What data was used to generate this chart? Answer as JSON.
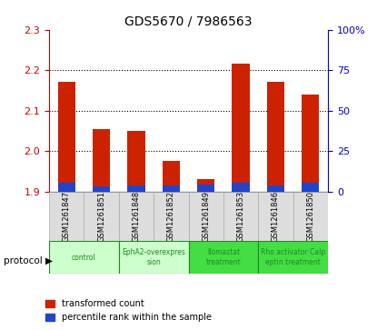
{
  "title": "GDS5670 / 7986563",
  "samples": [
    "GSM1261847",
    "GSM1261851",
    "GSM1261848",
    "GSM1261852",
    "GSM1261849",
    "GSM1261853",
    "GSM1261846",
    "GSM1261850"
  ],
  "red_values": [
    2.17,
    2.055,
    2.05,
    1.975,
    1.93,
    2.215,
    2.17,
    2.14
  ],
  "blue_values": [
    5.5,
    3.0,
    3.5,
    3.5,
    4.0,
    5.5,
    3.5,
    5.5
  ],
  "ylim_left": [
    1.9,
    2.3
  ],
  "ylim_right": [
    0,
    100
  ],
  "yticks_left": [
    1.9,
    2.0,
    2.1,
    2.2,
    2.3
  ],
  "yticks_right": [
    0,
    25,
    50,
    75,
    100
  ],
  "ytick_labels_right": [
    "0",
    "25",
    "50",
    "75",
    "100%"
  ],
  "protocols": [
    {
      "label": "control",
      "span": [
        0,
        2
      ],
      "color": "#ccffcc",
      "text_color": "#228822"
    },
    {
      "label": "EphA2-overexpres\nsion",
      "span": [
        2,
        4
      ],
      "color": "#ccffcc",
      "text_color": "#228822"
    },
    {
      "label": "llomastat\ntreatment",
      "span": [
        4,
        6
      ],
      "color": "#44dd44",
      "text_color": "#228822"
    },
    {
      "label": "Rho activator Calp\neptin treatment",
      "span": [
        6,
        8
      ],
      "color": "#44dd44",
      "text_color": "#228822"
    }
  ],
  "bar_width": 0.5,
  "red_color": "#cc2200",
  "blue_color": "#2244cc",
  "baseline": 1.9,
  "blue_scale": 0.004,
  "protocol_label": "protocol",
  "legend_red": "transformed count",
  "legend_blue": "percentile rank within the sample",
  "grid_color": "black",
  "tick_color_left": "#cc0000",
  "tick_color_right": "#0000cc",
  "sample_bg_color": "#dddddd",
  "sample_edge_color": "#aaaaaa"
}
